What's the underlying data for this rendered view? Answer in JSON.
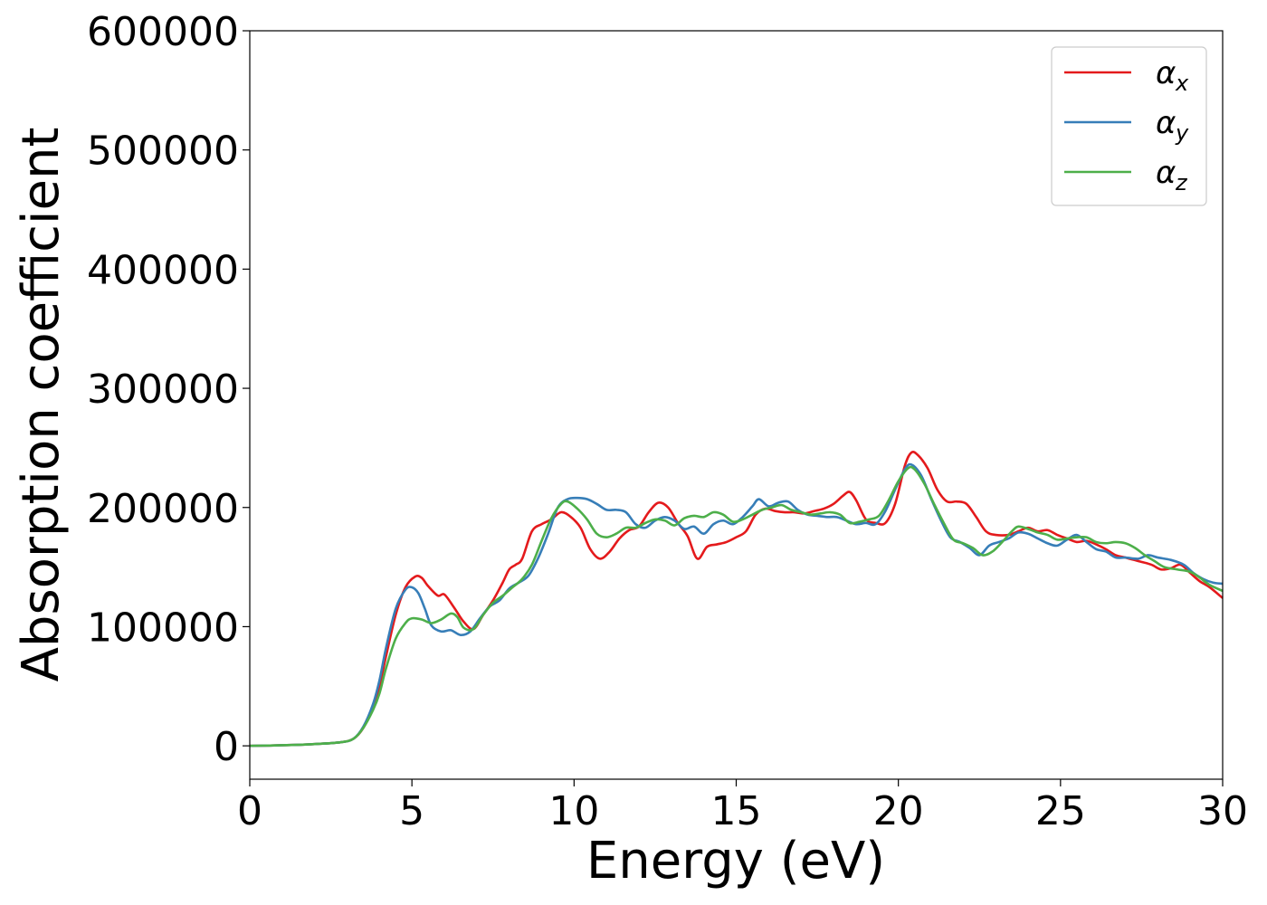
{
  "chart_data": {
    "type": "line",
    "xlabel": "Energy (eV)",
    "ylabel": "Absorption coefficient",
    "xlim": [
      0,
      30
    ],
    "ylim": [
      -28000,
      600000
    ],
    "xticks": [
      0,
      5,
      10,
      15,
      20,
      25,
      30
    ],
    "yticks": [
      0,
      100000,
      200000,
      300000,
      400000,
      500000,
      600000
    ],
    "xtick_labels": [
      "0",
      "5",
      "10",
      "15",
      "20",
      "25",
      "30"
    ],
    "ytick_labels": [
      "0",
      "100000",
      "200000",
      "300000",
      "400000",
      "500000",
      "600000"
    ],
    "grid": false,
    "legend_position": "top-right",
    "series": [
      {
        "name": "α",
        "subscript": "x",
        "color": "#e41a1c",
        "points": [
          [
            0,
            0
          ],
          [
            1,
            500
          ],
          [
            2,
            1500
          ],
          [
            2.8,
            3000
          ],
          [
            3.2,
            6000
          ],
          [
            3.5,
            15000
          ],
          [
            3.8,
            33000
          ],
          [
            4.0,
            50000
          ],
          [
            4.2,
            75000
          ],
          [
            4.5,
            110000
          ],
          [
            4.8,
            133000
          ],
          [
            5.1,
            142000
          ],
          [
            5.3,
            141000
          ],
          [
            5.5,
            134000
          ],
          [
            5.8,
            126000
          ],
          [
            6.0,
            127000
          ],
          [
            6.3,
            116000
          ],
          [
            6.6,
            104000
          ],
          [
            6.9,
            98000
          ],
          [
            7.2,
            110000
          ],
          [
            7.5,
            122000
          ],
          [
            7.8,
            137000
          ],
          [
            8.0,
            148000
          ],
          [
            8.2,
            152000
          ],
          [
            8.4,
            157000
          ],
          [
            8.7,
            180000
          ],
          [
            9.0,
            186000
          ],
          [
            9.3,
            190000
          ],
          [
            9.6,
            196000
          ],
          [
            9.9,
            192000
          ],
          [
            10.2,
            183000
          ],
          [
            10.5,
            165000
          ],
          [
            10.8,
            157000
          ],
          [
            11.1,
            163000
          ],
          [
            11.4,
            174000
          ],
          [
            11.7,
            181000
          ],
          [
            12.0,
            184000
          ],
          [
            12.3,
            196000
          ],
          [
            12.6,
            204000
          ],
          [
            12.9,
            200000
          ],
          [
            13.2,
            187000
          ],
          [
            13.5,
            176000
          ],
          [
            13.8,
            157000
          ],
          [
            14.1,
            167000
          ],
          [
            14.4,
            169000
          ],
          [
            14.7,
            171000
          ],
          [
            15.0,
            175000
          ],
          [
            15.3,
            180000
          ],
          [
            15.6,
            194000
          ],
          [
            15.9,
            199000
          ],
          [
            16.2,
            197000
          ],
          [
            16.5,
            196000
          ],
          [
            16.8,
            196000
          ],
          [
            17.1,
            195000
          ],
          [
            17.4,
            197000
          ],
          [
            17.7,
            199000
          ],
          [
            18.0,
            203000
          ],
          [
            18.3,
            210000
          ],
          [
            18.5,
            213000
          ],
          [
            18.7,
            206000
          ],
          [
            19.0,
            190000
          ],
          [
            19.3,
            187000
          ],
          [
            19.6,
            187000
          ],
          [
            19.9,
            203000
          ],
          [
            20.2,
            235000
          ],
          [
            20.4,
            246000
          ],
          [
            20.6,
            244000
          ],
          [
            20.9,
            233000
          ],
          [
            21.2,
            215000
          ],
          [
            21.5,
            205000
          ],
          [
            21.8,
            205000
          ],
          [
            22.1,
            203000
          ],
          [
            22.4,
            192000
          ],
          [
            22.7,
            180000
          ],
          [
            23.0,
            177000
          ],
          [
            23.4,
            177000
          ],
          [
            23.7,
            180000
          ],
          [
            24.0,
            183000
          ],
          [
            24.3,
            180000
          ],
          [
            24.6,
            181000
          ],
          [
            24.9,
            177000
          ],
          [
            25.2,
            174000
          ],
          [
            25.5,
            171000
          ],
          [
            25.8,
            172000
          ],
          [
            26.1,
            169000
          ],
          [
            26.4,
            165000
          ],
          [
            26.7,
            160000
          ],
          [
            27.0,
            158000
          ],
          [
            27.4,
            155000
          ],
          [
            27.8,
            152000
          ],
          [
            28.1,
            148000
          ],
          [
            28.4,
            149000
          ],
          [
            28.7,
            152000
          ],
          [
            29.0,
            145000
          ],
          [
            29.3,
            138000
          ],
          [
            29.6,
            133000
          ],
          [
            30.0,
            124000
          ]
        ]
      },
      {
        "name": "α",
        "subscript": "y",
        "color": "#377eb8",
        "points": [
          [
            0,
            0
          ],
          [
            1,
            500
          ],
          [
            2,
            1500
          ],
          [
            2.8,
            3000
          ],
          [
            3.2,
            6000
          ],
          [
            3.5,
            16000
          ],
          [
            3.8,
            35000
          ],
          [
            4.0,
            55000
          ],
          [
            4.2,
            82000
          ],
          [
            4.5,
            115000
          ],
          [
            4.8,
            131000
          ],
          [
            5.0,
            133000
          ],
          [
            5.2,
            128000
          ],
          [
            5.4,
            115000
          ],
          [
            5.6,
            101000
          ],
          [
            5.9,
            96000
          ],
          [
            6.2,
            97000
          ],
          [
            6.5,
            93000
          ],
          [
            6.8,
            96000
          ],
          [
            7.1,
            107000
          ],
          [
            7.4,
            117000
          ],
          [
            7.7,
            122000
          ],
          [
            8.0,
            132000
          ],
          [
            8.3,
            137000
          ],
          [
            8.6,
            143000
          ],
          [
            8.9,
            158000
          ],
          [
            9.2,
            178000
          ],
          [
            9.5,
            200000
          ],
          [
            9.8,
            207000
          ],
          [
            10.1,
            208000
          ],
          [
            10.4,
            207000
          ],
          [
            10.7,
            203000
          ],
          [
            11.0,
            198000
          ],
          [
            11.3,
            198000
          ],
          [
            11.6,
            196000
          ],
          [
            11.9,
            186000
          ],
          [
            12.2,
            183000
          ],
          [
            12.5,
            189000
          ],
          [
            12.8,
            192000
          ],
          [
            13.1,
            189000
          ],
          [
            13.4,
            182000
          ],
          [
            13.7,
            184000
          ],
          [
            14.0,
            178000
          ],
          [
            14.3,
            186000
          ],
          [
            14.6,
            189000
          ],
          [
            14.9,
            186000
          ],
          [
            15.2,
            192000
          ],
          [
            15.5,
            201000
          ],
          [
            15.7,
            207000
          ],
          [
            16.0,
            201000
          ],
          [
            16.3,
            204000
          ],
          [
            16.6,
            205000
          ],
          [
            16.9,
            198000
          ],
          [
            17.2,
            194000
          ],
          [
            17.5,
            193000
          ],
          [
            17.8,
            192000
          ],
          [
            18.1,
            192000
          ],
          [
            18.4,
            189000
          ],
          [
            18.7,
            186000
          ],
          [
            19.0,
            187000
          ],
          [
            19.3,
            186000
          ],
          [
            19.6,
            197000
          ],
          [
            19.9,
            215000
          ],
          [
            20.2,
            232000
          ],
          [
            20.4,
            236000
          ],
          [
            20.7,
            227000
          ],
          [
            21.0,
            208000
          ],
          [
            21.3,
            190000
          ],
          [
            21.6,
            175000
          ],
          [
            21.9,
            171000
          ],
          [
            22.2,
            166000
          ],
          [
            22.5,
            160000
          ],
          [
            22.8,
            168000
          ],
          [
            23.1,
            171000
          ],
          [
            23.4,
            174000
          ],
          [
            23.7,
            179000
          ],
          [
            24.0,
            178000
          ],
          [
            24.3,
            174000
          ],
          [
            24.6,
            170000
          ],
          [
            24.9,
            168000
          ],
          [
            25.2,
            173000
          ],
          [
            25.5,
            177000
          ],
          [
            25.8,
            171000
          ],
          [
            26.1,
            165000
          ],
          [
            26.4,
            163000
          ],
          [
            26.7,
            158000
          ],
          [
            27.0,
            158000
          ],
          [
            27.4,
            157000
          ],
          [
            27.7,
            160000
          ],
          [
            28.0,
            158000
          ],
          [
            28.4,
            156000
          ],
          [
            28.8,
            152000
          ],
          [
            29.1,
            145000
          ],
          [
            29.4,
            140000
          ],
          [
            29.7,
            137000
          ],
          [
            30.0,
            136000
          ]
        ]
      },
      {
        "name": "α",
        "subscript": "z",
        "color": "#4daf4a",
        "points": [
          [
            0,
            0
          ],
          [
            1,
            500
          ],
          [
            2,
            1500
          ],
          [
            2.8,
            3000
          ],
          [
            3.2,
            6000
          ],
          [
            3.5,
            15000
          ],
          [
            3.8,
            30000
          ],
          [
            4.0,
            44000
          ],
          [
            4.2,
            65000
          ],
          [
            4.5,
            90000
          ],
          [
            4.8,
            103000
          ],
          [
            5.0,
            107000
          ],
          [
            5.3,
            106000
          ],
          [
            5.6,
            103000
          ],
          [
            5.9,
            106000
          ],
          [
            6.2,
            111000
          ],
          [
            6.4,
            108000
          ],
          [
            6.6,
            99000
          ],
          [
            6.9,
            98000
          ],
          [
            7.2,
            110000
          ],
          [
            7.5,
            120000
          ],
          [
            7.8,
            126000
          ],
          [
            8.1,
            133000
          ],
          [
            8.4,
            140000
          ],
          [
            8.7,
            152000
          ],
          [
            9.0,
            172000
          ],
          [
            9.3,
            191000
          ],
          [
            9.6,
            203000
          ],
          [
            9.8,
            205000
          ],
          [
            10.1,
            199000
          ],
          [
            10.4,
            190000
          ],
          [
            10.7,
            178000
          ],
          [
            11.0,
            175000
          ],
          [
            11.3,
            178000
          ],
          [
            11.6,
            183000
          ],
          [
            11.9,
            183000
          ],
          [
            12.2,
            187000
          ],
          [
            12.5,
            190000
          ],
          [
            12.8,
            189000
          ],
          [
            13.1,
            185000
          ],
          [
            13.4,
            191000
          ],
          [
            13.7,
            193000
          ],
          [
            14.0,
            192000
          ],
          [
            14.3,
            196000
          ],
          [
            14.6,
            194000
          ],
          [
            14.9,
            188000
          ],
          [
            15.2,
            190000
          ],
          [
            15.5,
            194000
          ],
          [
            15.8,
            198000
          ],
          [
            16.1,
            200000
          ],
          [
            16.4,
            202000
          ],
          [
            16.7,
            198000
          ],
          [
            17.0,
            196000
          ],
          [
            17.3,
            194000
          ],
          [
            17.6,
            195000
          ],
          [
            17.9,
            196000
          ],
          [
            18.2,
            194000
          ],
          [
            18.5,
            187000
          ],
          [
            18.8,
            188000
          ],
          [
            19.1,
            190000
          ],
          [
            19.4,
            193000
          ],
          [
            19.7,
            206000
          ],
          [
            20.0,
            222000
          ],
          [
            20.3,
            233000
          ],
          [
            20.5,
            232000
          ],
          [
            20.8,
            220000
          ],
          [
            21.1,
            203000
          ],
          [
            21.4,
            187000
          ],
          [
            21.7,
            173000
          ],
          [
            22.0,
            170000
          ],
          [
            22.3,
            166000
          ],
          [
            22.6,
            160000
          ],
          [
            22.9,
            163000
          ],
          [
            23.2,
            171000
          ],
          [
            23.5,
            180000
          ],
          [
            23.7,
            184000
          ],
          [
            24.0,
            182000
          ],
          [
            24.3,
            179000
          ],
          [
            24.6,
            177000
          ],
          [
            24.9,
            173000
          ],
          [
            25.2,
            174000
          ],
          [
            25.5,
            175000
          ],
          [
            25.8,
            175000
          ],
          [
            26.1,
            171000
          ],
          [
            26.4,
            170000
          ],
          [
            26.7,
            171000
          ],
          [
            27.0,
            170000
          ],
          [
            27.3,
            166000
          ],
          [
            27.6,
            160000
          ],
          [
            27.9,
            155000
          ],
          [
            28.2,
            150000
          ],
          [
            28.6,
            148000
          ],
          [
            29.0,
            146000
          ],
          [
            29.3,
            141000
          ],
          [
            29.6,
            135000
          ],
          [
            30.0,
            130000
          ]
        ]
      }
    ]
  }
}
